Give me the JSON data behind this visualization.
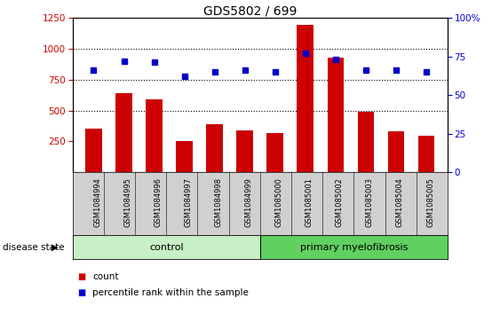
{
  "title": "GDS5802 / 699",
  "samples": [
    "GSM1084994",
    "GSM1084995",
    "GSM1084996",
    "GSM1084997",
    "GSM1084998",
    "GSM1084999",
    "GSM1085000",
    "GSM1085001",
    "GSM1085002",
    "GSM1085003",
    "GSM1085004",
    "GSM1085005"
  ],
  "counts": [
    355,
    640,
    590,
    255,
    390,
    340,
    315,
    1195,
    930,
    490,
    335,
    295
  ],
  "percentiles": [
    66,
    72,
    71,
    62,
    65,
    66,
    65,
    77,
    73,
    66,
    66,
    65
  ],
  "control_n": 6,
  "pmf_n": 6,
  "control_color": "#c8f0c8",
  "pmf_color": "#60d060",
  "bar_color": "#cc0000",
  "dot_color": "#0000cc",
  "ylim_left": [
    0,
    1250
  ],
  "ylim_right": [
    0,
    100
  ],
  "yticks_left": [
    250,
    500,
    750,
    1000,
    1250
  ],
  "yticks_right": [
    0,
    25,
    50,
    75,
    100
  ],
  "label_bg": "#d0d0d0",
  "plot_bg": "#ffffff",
  "legend_count_label": "count",
  "legend_pct_label": "percentile rank within the sample",
  "disease_label": "disease state"
}
